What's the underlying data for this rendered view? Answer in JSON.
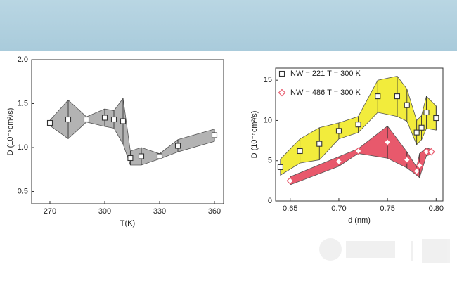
{
  "chart_data": [
    {
      "type": "band",
      "x_label": "T(K)",
      "y_label": "D (10⁻⁵cm²/s)",
      "xlim": [
        260,
        365
      ],
      "xticks": [
        270,
        300,
        330,
        360
      ],
      "ylim": [
        0.36,
        2.0
      ],
      "yticks": [
        {
          "value": 0.5,
          "label": "0.5"
        },
        {
          "value": 1,
          "label": "1.0"
        },
        {
          "value": 1.5,
          "label": "1.5"
        },
        {
          "value": 2,
          "label": "2.0"
        }
      ],
      "series": [
        {
          "color": "#b3b3b3",
          "marker": "square",
          "x": [
            270,
            280,
            290,
            300,
            305,
            310,
            314,
            320,
            330,
            340,
            360
          ],
          "values": [
            1.28,
            1.32,
            1.32,
            1.34,
            1.32,
            1.3,
            0.88,
            0.9,
            0.9,
            1.02,
            1.14
          ],
          "errors": [
            0.03,
            0.22,
            0.03,
            0.1,
            0.1,
            0.26,
            0.08,
            0.1,
            0.03,
            0.07,
            0.07
          ]
        }
      ]
    },
    {
      "type": "band",
      "x_label": "d (nm)",
      "y_label": "D (10⁻⁵cm²/s)",
      "legend": "upper left",
      "xlim": [
        0.635,
        0.807
      ],
      "xticks": [
        0.65,
        {
          "value": 0.7,
          "label": "0.70"
        },
        0.75,
        {
          "value": 0.8,
          "label": "0.80"
        }
      ],
      "ylim": [
        0,
        16.5
      ],
      "yticks": [
        0,
        5,
        10,
        15
      ],
      "series": [
        {
          "name": "NW = 221 T = 300 K",
          "color": "#f2ec3c",
          "marker": "square",
          "x": [
            0.64,
            0.66,
            0.68,
            0.7,
            0.72,
            0.74,
            0.76,
            0.77,
            0.78,
            0.785,
            0.79,
            0.8
          ],
          "values": [
            4.2,
            6.2,
            7.1,
            8.7,
            9.5,
            13.0,
            13.0,
            11.9,
            8.5,
            9.1,
            11.0,
            10.3
          ],
          "errors": [
            1.0,
            1.5,
            2.0,
            1.0,
            1.0,
            2.0,
            2.5,
            2.0,
            1.5,
            1.5,
            2.0,
            1.5
          ]
        },
        {
          "name": "NW = 486 T = 300 K",
          "color": "#e8596c",
          "marker": "diamond",
          "x": [
            0.65,
            0.7,
            0.72,
            0.75,
            0.77,
            0.78,
            0.783,
            0.79,
            0.795
          ],
          "values": [
            2.5,
            4.9,
            6.2,
            7.3,
            5.1,
            3.7,
            4.4,
            6.1,
            6.1
          ],
          "errors": [
            0.5,
            0.6,
            0.3,
            2.0,
            1.0,
            0.5,
            1.5,
            0.5,
            0.3
          ]
        }
      ]
    }
  ]
}
